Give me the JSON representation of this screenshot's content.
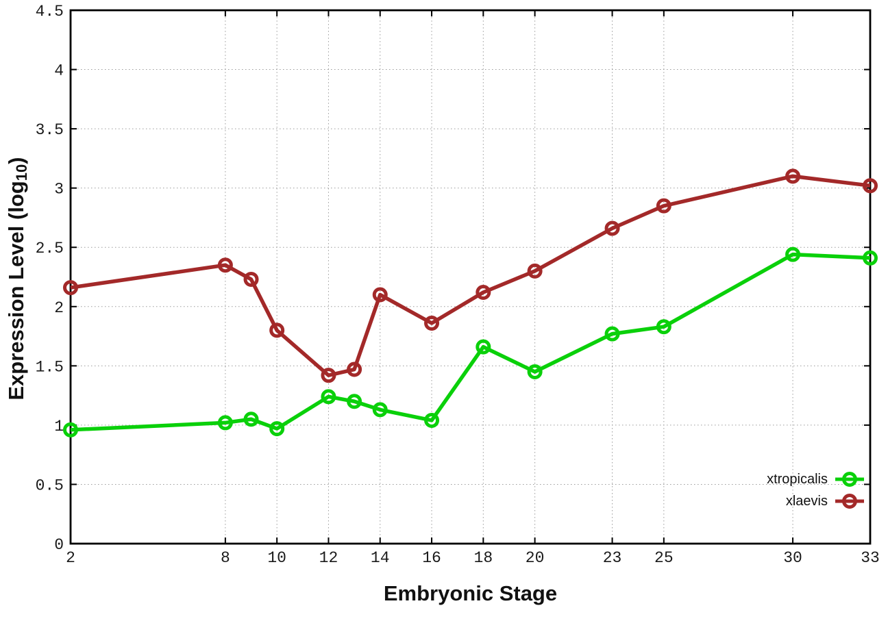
{
  "chart_data": {
    "type": "line",
    "title": "",
    "xlabel": "Embryonic Stage",
    "ylabel": "Expression Level (log10)",
    "ylabel_parts": {
      "main": "Expression Level (log",
      "sub": "10",
      "suffix": ")"
    },
    "x": [
      2,
      8,
      9,
      10,
      12,
      13,
      14,
      16,
      18,
      20,
      23,
      25,
      30,
      33
    ],
    "series": [
      {
        "name": "xtropicalis",
        "color": "#0ad00a",
        "values": [
          0.96,
          1.02,
          1.05,
          0.97,
          1.24,
          1.2,
          1.13,
          1.04,
          1.66,
          1.45,
          1.77,
          1.83,
          2.44,
          2.41
        ]
      },
      {
        "name": "xlaevis",
        "color": "#a32929",
        "values": [
          2.16,
          2.35,
          2.23,
          1.8,
          1.42,
          1.47,
          2.1,
          1.86,
          2.12,
          2.3,
          2.66,
          2.85,
          3.1,
          3.02
        ]
      }
    ],
    "xticks": [
      2,
      8,
      10,
      12,
      14,
      16,
      18,
      20,
      23,
      25,
      30,
      33
    ],
    "ytick_values": [
      0,
      0.5,
      1,
      1.5,
      2,
      2.5,
      3,
      3.5,
      4,
      4.5
    ],
    "ytick_labels": [
      "0",
      "0.5",
      "1",
      "1.5",
      "2",
      "2.5",
      "3",
      "3.5",
      "4",
      "4.5"
    ],
    "xlim": [
      2,
      33
    ],
    "ylim": [
      0,
      4.5
    ],
    "grid": true,
    "legend_position": "inside-bottom-right",
    "style": {
      "axis_color": "#000000",
      "grid_color": "#9a9a9a",
      "tick_text_color": "#1a1a1a",
      "background": "#ffffff"
    }
  }
}
